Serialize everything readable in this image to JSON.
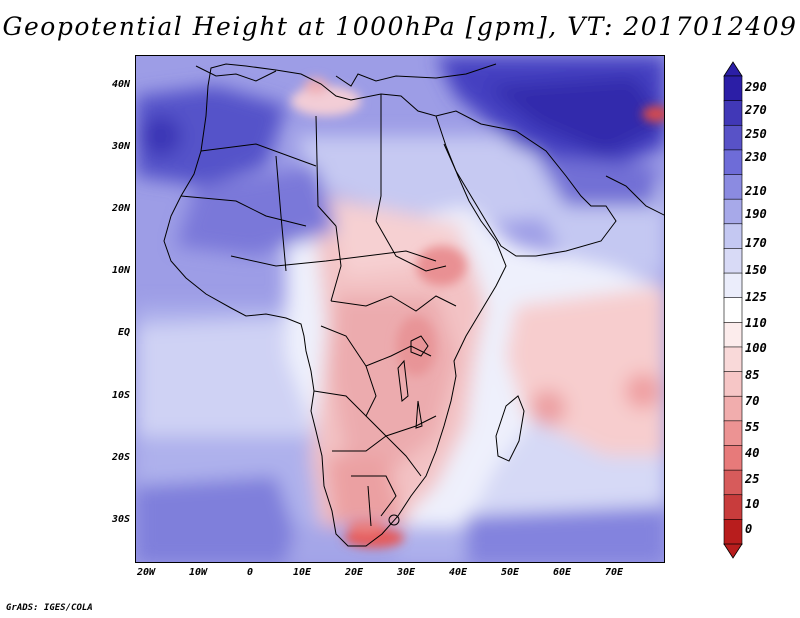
{
  "title": "Geopotential Height at 1000hPa [gpm], VT: 2017012409",
  "footer": "GrADS: IGES/COLA",
  "map": {
    "region": "Africa",
    "lat_ticks": [
      "40N",
      "30N",
      "20N",
      "10N",
      "EQ",
      "10S",
      "20S",
      "30S"
    ],
    "lon_ticks": [
      "20W",
      "10W",
      "0",
      "10E",
      "20E",
      "30E",
      "40E",
      "50E",
      "60E",
      "70E"
    ]
  },
  "colorbar": {
    "labels": [
      "290",
      "270",
      "250",
      "230",
      "210",
      "190",
      "170",
      "150",
      "125",
      "110",
      "100",
      "85",
      "70",
      "55",
      "40",
      "25",
      "10",
      "0"
    ],
    "colors": {
      "darkest_blue": "#2b1ea6",
      "mid_blue": "#6e6cd8",
      "light_blue": "#c4c8f2",
      "white": "#ffffff",
      "light_red": "#f6c6c6",
      "mid_red": "#e77a7a",
      "darkest_red": "#b81d1d"
    }
  }
}
